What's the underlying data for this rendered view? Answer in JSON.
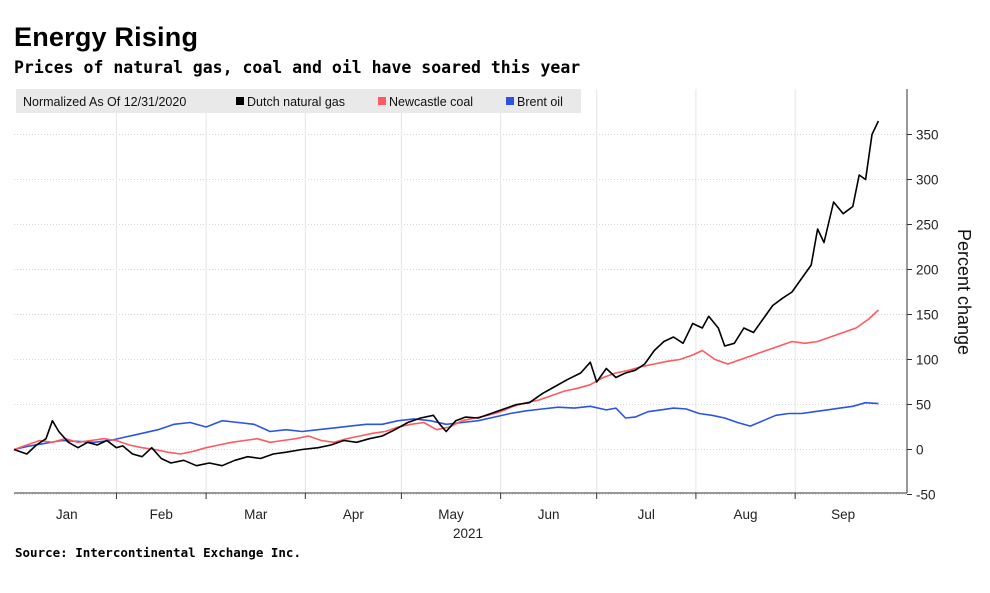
{
  "header": {
    "title": "Energy Rising",
    "subtitle": "Prices of natural gas, coal and oil have soared this year"
  },
  "footer": {
    "source": "Source: Intercontinental Exchange Inc."
  },
  "chart_data": {
    "type": "line",
    "title": "Energy Rising",
    "subtitle": "Prices of natural gas, coal and oil have soared this year",
    "xlabel": "2021",
    "ylabel": "Percent change",
    "ylim": [
      -50,
      400
    ],
    "yticks": [
      -50,
      0,
      50,
      100,
      150,
      200,
      250,
      300,
      350
    ],
    "xlim": [
      "2020-12-31",
      "2021-09-30"
    ],
    "month_ticks": [
      "Jan",
      "Feb",
      "Mar",
      "Apr",
      "May",
      "Jun",
      "Jul",
      "Aug",
      "Sep"
    ],
    "legend_note": "Normalized As Of 12/31/2020",
    "legend_position": "top-left",
    "grid": true,
    "series": [
      {
        "name": "Dutch natural gas",
        "color": "#000000",
        "points": [
          [
            "2020-12-31",
            0
          ],
          [
            "2021-01-04",
            -5
          ],
          [
            "2021-01-07",
            5
          ],
          [
            "2021-01-10",
            12
          ],
          [
            "2021-01-12",
            32
          ],
          [
            "2021-01-14",
            20
          ],
          [
            "2021-01-17",
            8
          ],
          [
            "2021-01-20",
            2
          ],
          [
            "2021-01-23",
            8
          ],
          [
            "2021-01-26",
            5
          ],
          [
            "2021-01-29",
            10
          ],
          [
            "2021-02-01",
            2
          ],
          [
            "2021-02-03",
            4
          ],
          [
            "2021-02-06",
            -5
          ],
          [
            "2021-02-09",
            -8
          ],
          [
            "2021-02-12",
            2
          ],
          [
            "2021-02-15",
            -10
          ],
          [
            "2021-02-18",
            -15
          ],
          [
            "2021-02-22",
            -12
          ],
          [
            "2021-02-26",
            -18
          ],
          [
            "2021-03-02",
            -15
          ],
          [
            "2021-03-06",
            -18
          ],
          [
            "2021-03-10",
            -12
          ],
          [
            "2021-03-14",
            -8
          ],
          [
            "2021-03-18",
            -10
          ],
          [
            "2021-03-22",
            -5
          ],
          [
            "2021-03-26",
            -3
          ],
          [
            "2021-03-31",
            0
          ],
          [
            "2021-04-05",
            2
          ],
          [
            "2021-04-09",
            5
          ],
          [
            "2021-04-13",
            10
          ],
          [
            "2021-04-17",
            8
          ],
          [
            "2021-04-21",
            12
          ],
          [
            "2021-04-25",
            15
          ],
          [
            "2021-04-29",
            22
          ],
          [
            "2021-05-03",
            30
          ],
          [
            "2021-05-07",
            35
          ],
          [
            "2021-05-11",
            38
          ],
          [
            "2021-05-13",
            28
          ],
          [
            "2021-05-15",
            20
          ],
          [
            "2021-05-18",
            32
          ],
          [
            "2021-05-21",
            36
          ],
          [
            "2021-05-25",
            35
          ],
          [
            "2021-05-29",
            40
          ],
          [
            "2021-06-02",
            45
          ],
          [
            "2021-06-06",
            50
          ],
          [
            "2021-06-10",
            52
          ],
          [
            "2021-06-14",
            62
          ],
          [
            "2021-06-18",
            70
          ],
          [
            "2021-06-22",
            78
          ],
          [
            "2021-06-26",
            85
          ],
          [
            "2021-06-29",
            97
          ],
          [
            "2021-07-01",
            75
          ],
          [
            "2021-07-04",
            90
          ],
          [
            "2021-07-07",
            80
          ],
          [
            "2021-07-10",
            85
          ],
          [
            "2021-07-13",
            88
          ],
          [
            "2021-07-16",
            95
          ],
          [
            "2021-07-19",
            110
          ],
          [
            "2021-07-22",
            120
          ],
          [
            "2021-07-25",
            125
          ],
          [
            "2021-07-28",
            118
          ],
          [
            "2021-07-31",
            140
          ],
          [
            "2021-08-03",
            135
          ],
          [
            "2021-08-05",
            148
          ],
          [
            "2021-08-08",
            135
          ],
          [
            "2021-08-10",
            115
          ],
          [
            "2021-08-13",
            118
          ],
          [
            "2021-08-16",
            135
          ],
          [
            "2021-08-19",
            130
          ],
          [
            "2021-08-22",
            145
          ],
          [
            "2021-08-25",
            160
          ],
          [
            "2021-08-28",
            168
          ],
          [
            "2021-08-31",
            175
          ],
          [
            "2021-09-03",
            190
          ],
          [
            "2021-09-06",
            205
          ],
          [
            "2021-09-08",
            245
          ],
          [
            "2021-09-10",
            230
          ],
          [
            "2021-09-13",
            275
          ],
          [
            "2021-09-16",
            262
          ],
          [
            "2021-09-19",
            270
          ],
          [
            "2021-09-21",
            305
          ],
          [
            "2021-09-23",
            300
          ],
          [
            "2021-09-25",
            350
          ],
          [
            "2021-09-27",
            365
          ]
        ]
      },
      {
        "name": "Newcastle coal",
        "color": "#ff5a5f",
        "points": [
          [
            "2020-12-31",
            0
          ],
          [
            "2021-01-04",
            5
          ],
          [
            "2021-01-08",
            10
          ],
          [
            "2021-01-12",
            8
          ],
          [
            "2021-01-16",
            12
          ],
          [
            "2021-01-20",
            8
          ],
          [
            "2021-01-24",
            10
          ],
          [
            "2021-01-28",
            12
          ],
          [
            "2021-02-01",
            10
          ],
          [
            "2021-02-05",
            5
          ],
          [
            "2021-02-09",
            2
          ],
          [
            "2021-02-13",
            0
          ],
          [
            "2021-02-17",
            -3
          ],
          [
            "2021-02-21",
            -5
          ],
          [
            "2021-02-25",
            -2
          ],
          [
            "2021-03-01",
            2
          ],
          [
            "2021-03-05",
            5
          ],
          [
            "2021-03-09",
            8
          ],
          [
            "2021-03-13",
            10
          ],
          [
            "2021-03-17",
            12
          ],
          [
            "2021-03-21",
            8
          ],
          [
            "2021-03-25",
            10
          ],
          [
            "2021-03-29",
            12
          ],
          [
            "2021-04-02",
            15
          ],
          [
            "2021-04-06",
            10
          ],
          [
            "2021-04-10",
            8
          ],
          [
            "2021-04-14",
            12
          ],
          [
            "2021-04-18",
            15
          ],
          [
            "2021-04-22",
            18
          ],
          [
            "2021-04-26",
            20
          ],
          [
            "2021-04-30",
            25
          ],
          [
            "2021-05-04",
            28
          ],
          [
            "2021-05-08",
            30
          ],
          [
            "2021-05-12",
            22
          ],
          [
            "2021-05-16",
            25
          ],
          [
            "2021-05-20",
            32
          ],
          [
            "2021-05-24",
            35
          ],
          [
            "2021-05-28",
            38
          ],
          [
            "2021-06-01",
            42
          ],
          [
            "2021-06-05",
            48
          ],
          [
            "2021-06-09",
            52
          ],
          [
            "2021-06-13",
            55
          ],
          [
            "2021-06-17",
            60
          ],
          [
            "2021-06-21",
            65
          ],
          [
            "2021-06-25",
            68
          ],
          [
            "2021-06-29",
            72
          ],
          [
            "2021-07-03",
            80
          ],
          [
            "2021-07-07",
            85
          ],
          [
            "2021-07-11",
            88
          ],
          [
            "2021-07-15",
            92
          ],
          [
            "2021-07-19",
            95
          ],
          [
            "2021-07-23",
            98
          ],
          [
            "2021-07-27",
            100
          ],
          [
            "2021-07-31",
            105
          ],
          [
            "2021-08-03",
            110
          ],
          [
            "2021-08-07",
            100
          ],
          [
            "2021-08-11",
            95
          ],
          [
            "2021-08-15",
            100
          ],
          [
            "2021-08-19",
            105
          ],
          [
            "2021-08-23",
            110
          ],
          [
            "2021-08-27",
            115
          ],
          [
            "2021-08-31",
            120
          ],
          [
            "2021-09-04",
            118
          ],
          [
            "2021-09-08",
            120
          ],
          [
            "2021-09-12",
            125
          ],
          [
            "2021-09-16",
            130
          ],
          [
            "2021-09-20",
            135
          ],
          [
            "2021-09-24",
            145
          ],
          [
            "2021-09-27",
            155
          ]
        ]
      },
      {
        "name": "Brent oil",
        "color": "#2c54e0",
        "points": [
          [
            "2020-12-31",
            0
          ],
          [
            "2021-01-05",
            4
          ],
          [
            "2021-01-10",
            7
          ],
          [
            "2021-01-15",
            10
          ],
          [
            "2021-01-20",
            9
          ],
          [
            "2021-01-25",
            8
          ],
          [
            "2021-01-30",
            10
          ],
          [
            "2021-02-04",
            14
          ],
          [
            "2021-02-09",
            18
          ],
          [
            "2021-02-14",
            22
          ],
          [
            "2021-02-19",
            28
          ],
          [
            "2021-02-24",
            30
          ],
          [
            "2021-03-01",
            25
          ],
          [
            "2021-03-06",
            32
          ],
          [
            "2021-03-11",
            30
          ],
          [
            "2021-03-16",
            28
          ],
          [
            "2021-03-21",
            20
          ],
          [
            "2021-03-26",
            22
          ],
          [
            "2021-03-31",
            20
          ],
          [
            "2021-04-05",
            22
          ],
          [
            "2021-04-10",
            24
          ],
          [
            "2021-04-15",
            26
          ],
          [
            "2021-04-20",
            28
          ],
          [
            "2021-04-25",
            28
          ],
          [
            "2021-04-30",
            32
          ],
          [
            "2021-05-05",
            34
          ],
          [
            "2021-05-10",
            32
          ],
          [
            "2021-05-15",
            28
          ],
          [
            "2021-05-20",
            30
          ],
          [
            "2021-05-25",
            32
          ],
          [
            "2021-05-30",
            36
          ],
          [
            "2021-06-04",
            40
          ],
          [
            "2021-06-09",
            43
          ],
          [
            "2021-06-14",
            45
          ],
          [
            "2021-06-19",
            47
          ],
          [
            "2021-06-24",
            46
          ],
          [
            "2021-06-29",
            48
          ],
          [
            "2021-07-04",
            44
          ],
          [
            "2021-07-07",
            46
          ],
          [
            "2021-07-10",
            35
          ],
          [
            "2021-07-13",
            36
          ],
          [
            "2021-07-17",
            42
          ],
          [
            "2021-07-21",
            44
          ],
          [
            "2021-07-25",
            46
          ],
          [
            "2021-07-29",
            45
          ],
          [
            "2021-08-02",
            40
          ],
          [
            "2021-08-06",
            38
          ],
          [
            "2021-08-10",
            35
          ],
          [
            "2021-08-14",
            30
          ],
          [
            "2021-08-18",
            26
          ],
          [
            "2021-08-22",
            32
          ],
          [
            "2021-08-26",
            38
          ],
          [
            "2021-08-30",
            40
          ],
          [
            "2021-09-03",
            40
          ],
          [
            "2021-09-07",
            42
          ],
          [
            "2021-09-11",
            44
          ],
          [
            "2021-09-15",
            46
          ],
          [
            "2021-09-19",
            48
          ],
          [
            "2021-09-23",
            52
          ],
          [
            "2021-09-27",
            51
          ]
        ]
      }
    ]
  }
}
